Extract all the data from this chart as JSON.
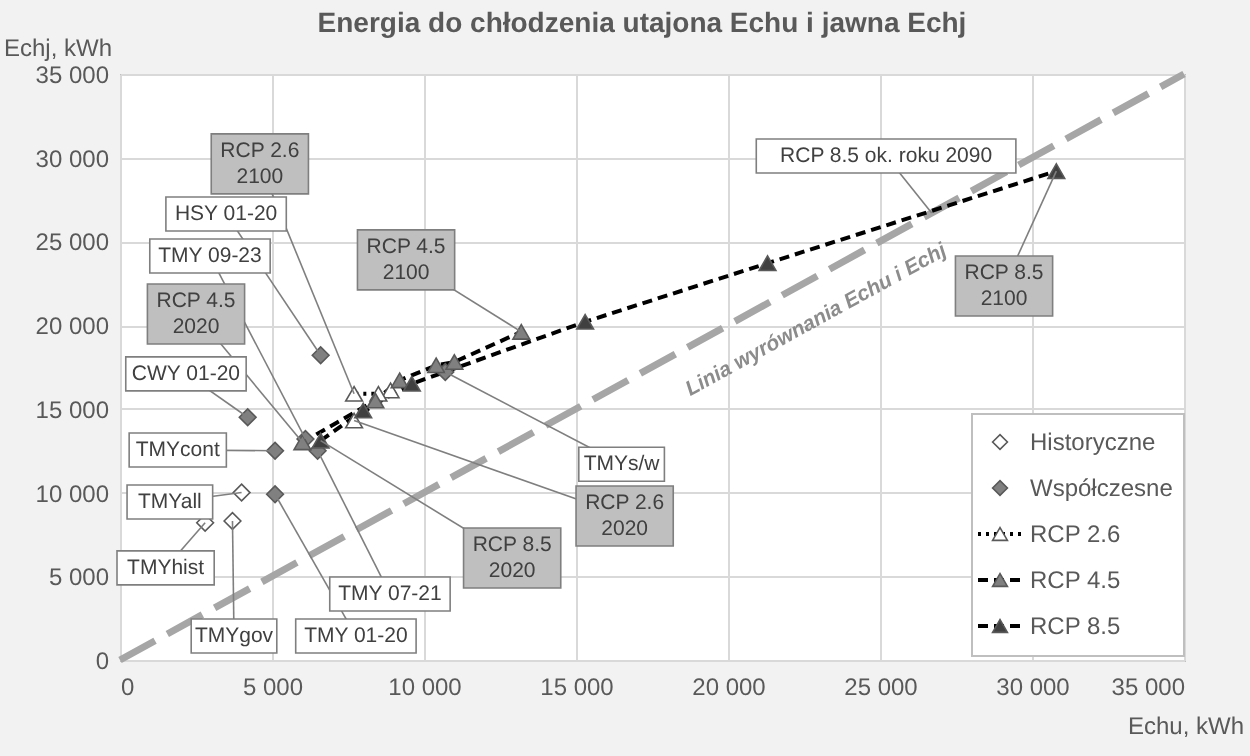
{
  "chart_data": {
    "type": "scatter",
    "title": "Energia do chłodzenia utajona Echu i jawna Echj",
    "xlabel": "Echu, kWh",
    "ylabel": "Echj, kWh",
    "xlim": [
      0,
      35000
    ],
    "ylim": [
      0,
      35000
    ],
    "xticks": [
      0,
      {
        "value": 5000,
        "label": "5 000"
      },
      {
        "value": 10000,
        "label": "10 000"
      },
      {
        "value": 15000,
        "label": "15 000"
      },
      {
        "value": 20000,
        "label": "20 000"
      },
      {
        "value": 25000,
        "label": "25 000"
      },
      {
        "value": 30000,
        "label": "30 000"
      },
      {
        "value": 35000,
        "label": "35 000"
      }
    ],
    "yticks": [
      0,
      {
        "value": 5000,
        "label": "5 000"
      },
      {
        "value": 10000,
        "label": "10 000"
      },
      {
        "value": 15000,
        "label": "15 000"
      },
      {
        "value": 20000,
        "label": "20 000"
      },
      {
        "value": 25000,
        "label": "25 000"
      },
      {
        "value": 30000,
        "label": "30 000"
      },
      {
        "value": 35000,
        "label": "35 000"
      }
    ],
    "grid": true,
    "legend": "bottom right",
    "series": [
      {
        "name": "Linia wyrównania Echu i Echj",
        "type": "line",
        "marker": "none",
        "line_style": "dashed",
        "color": "#a6a6a6",
        "x": [
          0,
          35000
        ],
        "values": [
          0,
          35000
        ]
      },
      {
        "name": "Historyczne",
        "type": "scatter",
        "marker": "diamond",
        "color": "#ffffff",
        "x": [
          2800,
          3700,
          4000
        ],
        "values": [
          8200,
          8300,
          10000
        ]
      },
      {
        "name": "Współczesne",
        "type": "scatter",
        "marker": "diamond",
        "color": "#808080",
        "x": [
          4200,
          5100,
          5100,
          6100,
          6500,
          6600,
          10700
        ],
        "values": [
          14500,
          12500,
          9900,
          13200,
          12500,
          18200,
          17200
        ]
      },
      {
        "name": "RCP 2.6",
        "type": "line",
        "marker": "triangle",
        "line_style": "dotted",
        "color": "#ffffff",
        "x": [
          7700,
          8900,
          8500,
          7700
        ],
        "values": [
          14300,
          16100,
          15900,
          15900
        ]
      },
      {
        "name": "RCP 4.5",
        "type": "line",
        "marker": "triangle",
        "line_style": "dashed",
        "color": "#808080",
        "x": [
          6000,
          8400,
          9200,
          10400,
          11000,
          13200
        ],
        "values": [
          13000,
          15500,
          16700,
          17600,
          17800,
          19600
        ]
      },
      {
        "name": "RCP 8.5",
        "type": "line",
        "marker": "triangle",
        "line_style": "dashed",
        "color": "#404040",
        "x": [
          6600,
          8000,
          9600,
          15300,
          21300,
          30800
        ],
        "values": [
          13100,
          14900,
          16500,
          20200,
          23700,
          29200
        ]
      }
    ],
    "annotations": [
      {
        "text": "TMYhist",
        "x": 2800,
        "y": 8200
      },
      {
        "text": "TMYgov",
        "x": 3700,
        "y": 8300
      },
      {
        "text": "TMYall",
        "x": 4000,
        "y": 10000
      },
      {
        "text": "CWY 01-20",
        "x": 4200,
        "y": 14500
      },
      {
        "text": "TMYcont",
        "x": 5100,
        "y": 12500
      },
      {
        "text": "TMY 01-20",
        "x": 5100,
        "y": 9900
      },
      {
        "text": "TMY 07-21",
        "x": 6500,
        "y": 12500
      },
      {
        "text": "RCP 8.5\n2020",
        "x": 6600,
        "y": 13100
      },
      {
        "text": "TMYs/w",
        "x": 10700,
        "y": 17200
      },
      {
        "text": "RCP 2.6\n2020",
        "x": 7700,
        "y": 14300
      },
      {
        "text": "RCP 2.6\n2100",
        "x": 7700,
        "y": 15900
      },
      {
        "text": "HSY 01-20",
        "x": 6600,
        "y": 18200
      },
      {
        "text": "TMY 09-23",
        "x": 6100,
        "y": 13200
      },
      {
        "text": "RCP 4.5\n2020",
        "x": 6000,
        "y": 13000
      },
      {
        "text": "RCP 4.5\n2100",
        "x": 13200,
        "y": 19600
      },
      {
        "text": "RCP 8.5 ok. roku 2090",
        "x": 26700,
        "y": 26700
      },
      {
        "text": "RCP 8.5\n2100",
        "x": 30800,
        "y": 29200
      }
    ]
  }
}
